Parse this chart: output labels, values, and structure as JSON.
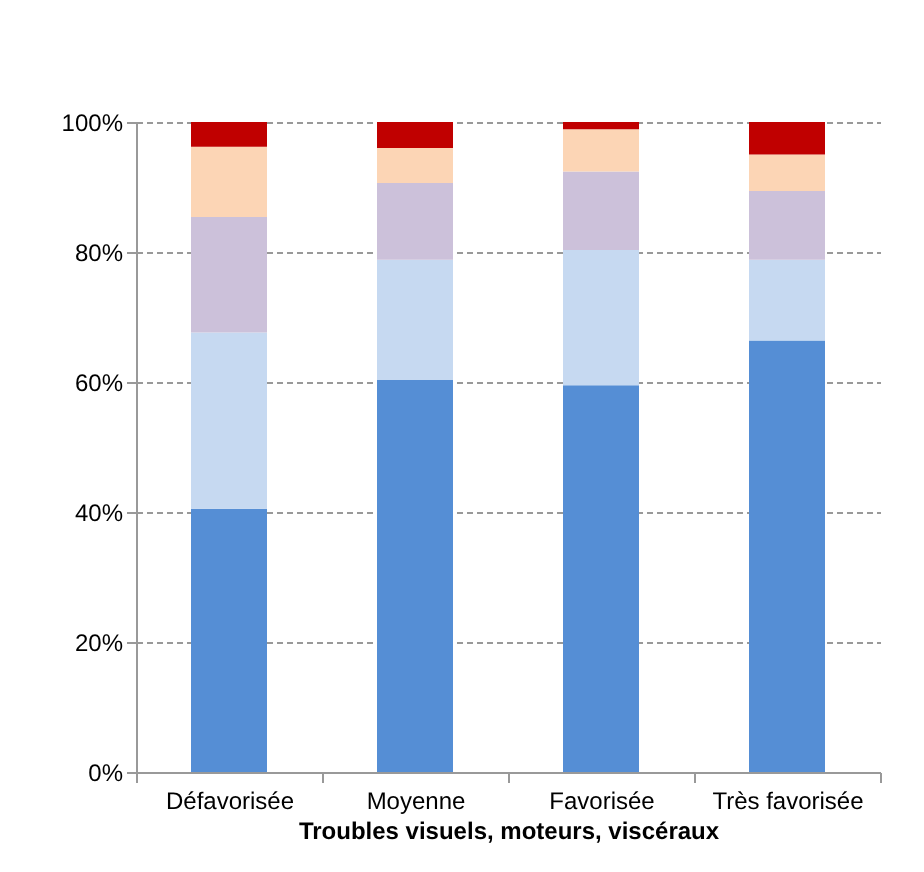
{
  "chart_data": {
    "type": "bar",
    "stacked": true,
    "xlabel": "Troubles visuels, moteurs, viscéraux",
    "categories": [
      "Défavorisée",
      "Moyenne",
      "Favorisée",
      "Très favorisée"
    ],
    "series": [
      {
        "color": "#558ed5",
        "values": [
          40.5,
          60.3,
          59.5,
          66.4
        ]
      },
      {
        "color": "#c6d9f1",
        "values": [
          27.1,
          18.5,
          20.8,
          12.4
        ]
      },
      {
        "color": "#ccc1da",
        "values": [
          17.8,
          11.8,
          12.1,
          10.6
        ]
      },
      {
        "color": "#fcd5b5",
        "values": [
          10.8,
          5.4,
          6.5,
          5.6
        ]
      },
      {
        "color": "#c00000",
        "values": [
          3.8,
          4.0,
          1.1,
          5.0
        ]
      }
    ],
    "ylim": [
      0,
      100
    ],
    "yticks": [
      {
        "value": 0,
        "label": "0%"
      },
      {
        "value": 20,
        "label": "20%"
      },
      {
        "value": 40,
        "label": "40%"
      },
      {
        "value": 60,
        "label": "60%"
      },
      {
        "value": 80,
        "label": "80%"
      },
      {
        "value": 100,
        "label": "100%"
      }
    ],
    "grid": "y",
    "legend": false
  }
}
